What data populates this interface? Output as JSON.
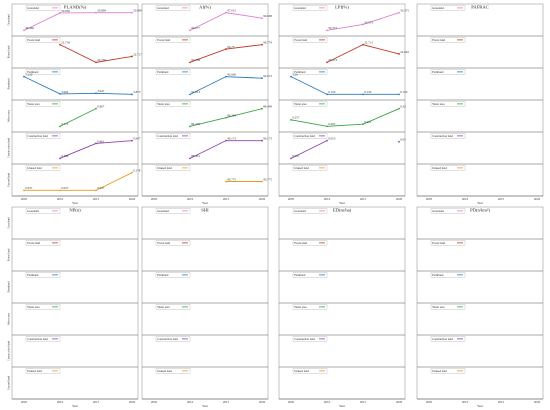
{
  "chart_data": {
    "type": "line",
    "x": [
      "2005",
      "2010",
      "2015",
      "2020"
    ],
    "xlabel": "Year",
    "row_labels": [
      "Grassland",
      "Forest land",
      "Farmland",
      "Water area",
      "Construction land",
      "Unused land"
    ],
    "colors": {
      "Grassland": "#e07fd0",
      "Forest land": "#c0392b",
      "Farmland": "#2b7bb9",
      "Water area": "#3aa34a",
      "Construction land": "#8e44ad",
      "Unused land": "#e69b1e"
    },
    "panels": [
      {
        "title": "PLAND(%)",
        "series": [
          {
            "name": "Grassland",
            "values": [
              46.466,
              50.836,
              50.899,
              50.899
            ]
          },
          {
            "name": "Forest land",
            "values": [
              null,
              22.739,
              22.706,
              22.717
            ]
          },
          {
            "name": "Farmland",
            "values": [
              5.126,
              3.904,
              3.947,
              3.873
            ]
          },
          {
            "name": "Water area",
            "values": [
              null,
              0.772,
              0.807,
              null
            ]
          },
          {
            "name": "Construction land",
            "values": [
              null,
              0.399,
              0.861,
              0.947
            ]
          },
          {
            "name": "Unused land",
            "values": [
              0.037,
              0.037,
              0.037,
              0.178
            ]
          }
        ]
      },
      {
        "title": "AI(%)",
        "series": [
          {
            "name": "Grassland",
            "values": [
              null,
              96.677,
              97.012,
              96.908
            ]
          },
          {
            "name": "Forest land",
            "values": [
              null,
              96.758,
              96.77,
              96.774
            ]
          },
          {
            "name": "Farmland",
            "values": [
              null,
              91.913,
              93.006,
              92.913
            ]
          },
          {
            "name": "Water area",
            "values": [
              null,
              84.276,
              86.348,
              88.499
            ]
          },
          {
            "name": "Construction land",
            "values": [
              null,
              88.401,
              90.173,
              90.173
            ]
          },
          {
            "name": "Unused land",
            "values": [
              null,
              null,
              90.775,
              90.775
            ]
          }
        ]
      },
      {
        "title": "LPI(%)",
        "series": [
          {
            "name": "Grassland",
            "values": [
              null,
              50.372,
              50.373,
              50.375
            ]
          },
          {
            "name": "Forest land",
            "values": [
              null,
              22.673,
              22.713,
              22.692
            ]
          },
          {
            "name": "Farmland",
            "values": [
              3.26,
              0.159,
              0.159,
              0.159
            ]
          },
          {
            "name": "Water area",
            "values": [
              0.257,
              0.203,
              0.221,
              0.35
            ]
          },
          {
            "name": "Construction land",
            "values": [
              0.007,
              0.053,
              null,
              0.05
            ]
          },
          {
            "name": "Unused land",
            "values": [
              null,
              null,
              null,
              null
            ]
          }
        ]
      },
      {
        "title": "PAFRAC",
        "series": [
          {
            "name": "Grassland",
            "values": [
              null,
              null,
              null,
              null
            ]
          },
          {
            "name": "Forest land",
            "values": [
              null,
              null,
              null,
              null
            ]
          },
          {
            "name": "Farmland",
            "values": [
              null,
              null,
              null,
              null
            ]
          },
          {
            "name": "Water area",
            "values": [
              null,
              null,
              null,
              null
            ]
          },
          {
            "name": "Construction land",
            "values": [
              null,
              null,
              null,
              null
            ]
          },
          {
            "name": "Unused land",
            "values": [
              null,
              null,
              null,
              null
            ]
          }
        ]
      },
      {
        "title": "NP(n)",
        "series": [
          {
            "name": "Grassland",
            "values": [
              null,
              null,
              null,
              null
            ]
          },
          {
            "name": "Forest land",
            "values": [
              null,
              null,
              null,
              null
            ]
          },
          {
            "name": "Farmland",
            "values": [
              null,
              null,
              null,
              null
            ]
          },
          {
            "name": "Water area",
            "values": [
              null,
              null,
              null,
              null
            ]
          },
          {
            "name": "Construction land",
            "values": [
              null,
              null,
              null,
              null
            ]
          },
          {
            "name": "Unused land",
            "values": [
              null,
              null,
              null,
              null
            ]
          }
        ]
      },
      {
        "title": "SHI",
        "series": [
          {
            "name": "Grassland",
            "values": [
              null,
              null,
              null,
              null
            ]
          },
          {
            "name": "Forest land",
            "values": [
              null,
              null,
              null,
              null
            ]
          },
          {
            "name": "Farmland",
            "values": [
              null,
              null,
              null,
              null
            ]
          },
          {
            "name": "Water area",
            "values": [
              null,
              null,
              null,
              null
            ]
          },
          {
            "name": "Construction land",
            "values": [
              null,
              null,
              null,
              null
            ]
          },
          {
            "name": "Unused land",
            "values": [
              null,
              null,
              null,
              null
            ]
          }
        ]
      },
      {
        "title": "ED(m/ha)",
        "series": [
          {
            "name": "Grassland",
            "values": [
              null,
              null,
              null,
              null
            ]
          },
          {
            "name": "Forest land",
            "values": [
              null,
              null,
              null,
              null
            ]
          },
          {
            "name": "Farmland",
            "values": [
              null,
              null,
              null,
              null
            ]
          },
          {
            "name": "Water area",
            "values": [
              null,
              null,
              null,
              null
            ]
          },
          {
            "name": "Construction land",
            "values": [
              null,
              null,
              null,
              null
            ]
          },
          {
            "name": "Unused land",
            "values": [
              null,
              null,
              null,
              null
            ]
          }
        ]
      },
      {
        "title": "PD(n/km²)",
        "series": [
          {
            "name": "Grassland",
            "values": [
              null,
              null,
              null,
              null
            ]
          },
          {
            "name": "Forest land",
            "values": [
              null,
              null,
              null,
              null
            ]
          },
          {
            "name": "Farmland",
            "values": [
              null,
              null,
              null,
              null
            ]
          },
          {
            "name": "Water area",
            "values": [
              null,
              null,
              null,
              null
            ]
          },
          {
            "name": "Construction land",
            "values": [
              null,
              null,
              null,
              null
            ]
          },
          {
            "name": "Unused land",
            "values": [
              null,
              null,
              null,
              null
            ]
          }
        ]
      }
    ]
  }
}
